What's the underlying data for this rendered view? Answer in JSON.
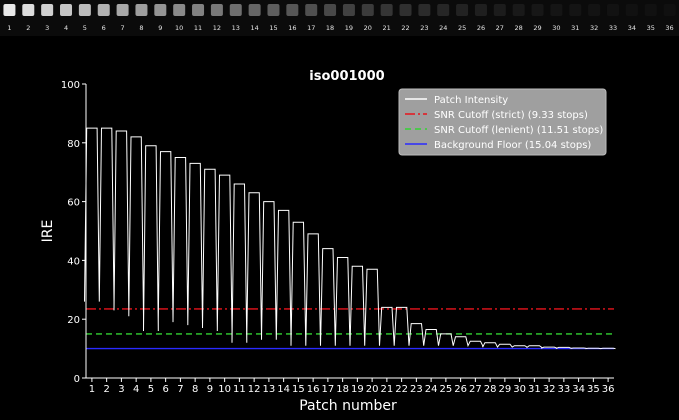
{
  "strip": {
    "labels": [
      "1",
      "2",
      "3",
      "4",
      "5",
      "6",
      "7",
      "8",
      "9",
      "10",
      "11",
      "12",
      "13",
      "14",
      "15",
      "16",
      "17",
      "18",
      "19",
      "20",
      "21",
      "22",
      "23",
      "24",
      "25",
      "26",
      "27",
      "28",
      "29",
      "30",
      "31",
      "32",
      "33",
      "34",
      "35",
      "36"
    ],
    "colors": [
      "#e8e8e8",
      "#dcdcdc",
      "#d0d0d0",
      "#c6c6c6",
      "#bcbcbc",
      "#b2b2b2",
      "#a8a8a8",
      "#9e9e9e",
      "#949494",
      "#8a8a8a",
      "#818181",
      "#787878",
      "#6f6f6f",
      "#666666",
      "#5e5e5e",
      "#565656",
      "#4f4f4f",
      "#484848",
      "#414141",
      "#3b3b3b",
      "#353535",
      "#303030",
      "#2b2b2b",
      "#262626",
      "#222222",
      "#1f1f1f",
      "#1c1c1c",
      "#191919",
      "#171717",
      "#151515",
      "#141414",
      "#131313",
      "#121212",
      "#111111",
      "#111111",
      "#101010"
    ]
  },
  "chart_data": {
    "type": "line",
    "title": "iso001000",
    "xlabel": "Patch number",
    "ylabel": "IRE",
    "xlim": [
      0.6,
      36.4
    ],
    "ylim": [
      0,
      100
    ],
    "xticks": [
      1,
      2,
      3,
      4,
      5,
      6,
      7,
      8,
      9,
      10,
      11,
      12,
      13,
      14,
      15,
      16,
      17,
      18,
      19,
      20,
      21,
      22,
      23,
      24,
      25,
      26,
      27,
      28,
      29,
      30,
      31,
      32,
      33,
      34,
      35,
      36
    ],
    "yticks": [
      0,
      20,
      40,
      60,
      80,
      100
    ],
    "grid": false,
    "legend": "top-right",
    "patch_series": {
      "name": "Patch Intensity",
      "color": "#ffffff",
      "patch_peaks": [
        85,
        85,
        84,
        82,
        79,
        77,
        75,
        73,
        71,
        69,
        66,
        63,
        60,
        57,
        53,
        49,
        44,
        41,
        38,
        37,
        24,
        24,
        18.5,
        16.5,
        15,
        14,
        12.5,
        12,
        11.5,
        11,
        11,
        10.5,
        10.4,
        10.2,
        10.1,
        10.1
      ],
      "valley_values": [
        26,
        26,
        23,
        21,
        16,
        20,
        19,
        18,
        17,
        16,
        12,
        14,
        13,
        13,
        11,
        11,
        11,
        11,
        11,
        11,
        11,
        11,
        11,
        11,
        11,
        11,
        11,
        10.5,
        10.5,
        10.5,
        10.4,
        10.2,
        10.1,
        10.1,
        10,
        10
      ]
    },
    "series": [
      {
        "name": "Patch Intensity",
        "color": "#ffffff",
        "style": "solid"
      },
      {
        "name": "SNR Cutoff (strict) (9.33 stops)",
        "color": "#e8141c",
        "style": "dashdot",
        "y": 23.5
      },
      {
        "name": "SNR Cutoff (lenient) (11.51 stops)",
        "color": "#33d433",
        "style": "dashed",
        "y": 15
      },
      {
        "name": "Background Floor (15.04 stops)",
        "color": "#2a2aff",
        "style": "solid",
        "y": 10
      }
    ]
  }
}
